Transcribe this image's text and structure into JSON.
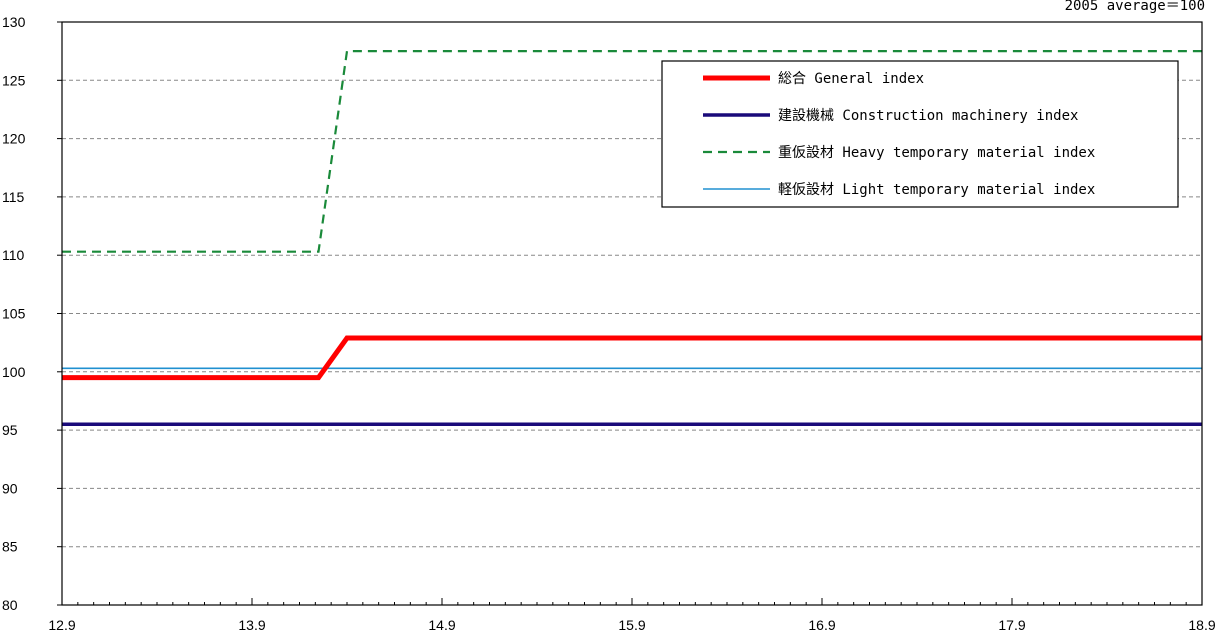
{
  "chart_data": {
    "type": "line",
    "note": "2005 average＝100",
    "x_categories": [
      "12.9",
      "13.9",
      "14.9",
      "15.9",
      "16.9",
      "17.9",
      "18.9"
    ],
    "y_ticks": [
      80,
      85,
      90,
      95,
      100,
      105,
      110,
      115,
      120,
      125,
      130
    ],
    "ylim": [
      80,
      130
    ],
    "grid": "horizontal dashed",
    "legend_position": "top-right",
    "series": [
      {
        "name": "総合 General index",
        "color": "#ff0000",
        "style": "solid-thick",
        "points": [
          [
            0,
            99.5
          ],
          [
            1.35,
            99.5
          ],
          [
            1.5,
            102.9
          ],
          [
            6,
            102.9
          ]
        ]
      },
      {
        "name": "建設機械 Construction machinery index",
        "color": "#1a0a7a",
        "style": "solid",
        "points": [
          [
            0,
            95.5
          ],
          [
            6,
            95.5
          ]
        ]
      },
      {
        "name": "重仮設材 Heavy temporary material index",
        "color": "#1a8a3a",
        "style": "dashed",
        "points": [
          [
            0,
            110.3
          ],
          [
            1.35,
            110.3
          ],
          [
            1.5,
            127.5
          ],
          [
            6,
            127.5
          ]
        ]
      },
      {
        "name": "軽仮設材 Light temporary material index",
        "color": "#2090d0",
        "style": "solid-thin",
        "points": [
          [
            0,
            100.3
          ],
          [
            6,
            100.3
          ]
        ]
      }
    ]
  }
}
